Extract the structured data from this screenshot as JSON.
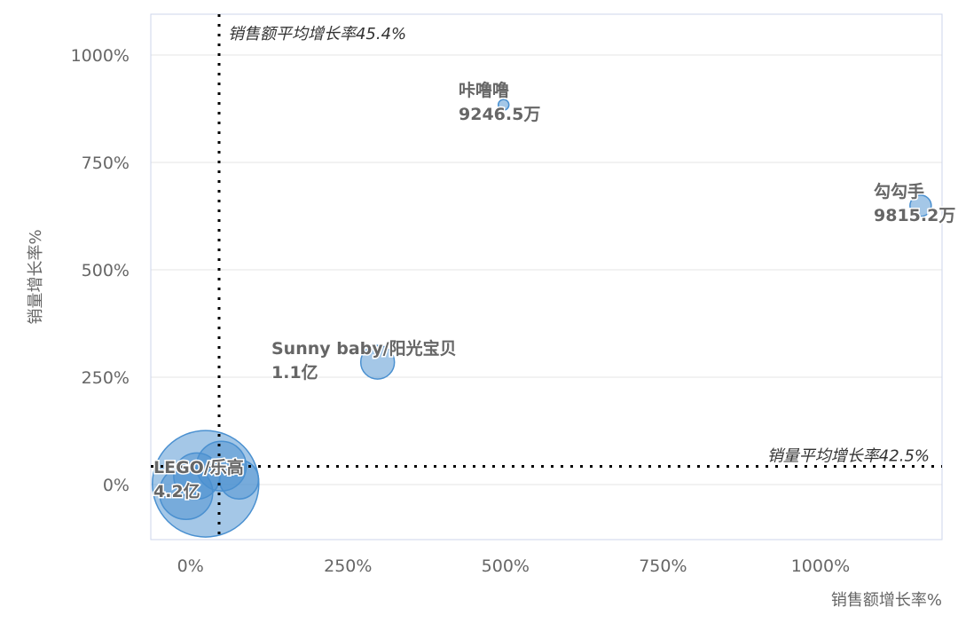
{
  "chart_data": {
    "type": "scatter",
    "subtype": "bubble",
    "xlabel": "销售额增长率%",
    "ylabel": "销量增长率%",
    "xlim": [
      -63,
      1193
    ],
    "ylim": [
      -128,
      1095
    ],
    "x_ticks": [
      "0%",
      "250%",
      "500%",
      "750%",
      "1000%"
    ],
    "x_tick_values": [
      0,
      250,
      500,
      750,
      1000
    ],
    "y_ticks": [
      "0%",
      "250%",
      "500%",
      "750%",
      "1000%"
    ],
    "y_tick_values": [
      0,
      250,
      500,
      750,
      1000
    ],
    "grid": "horizontal",
    "bubble_color": "#4a90d0",
    "reference_lines": [
      {
        "axis": "x",
        "value": 45.4,
        "label": "销售额平均增长率45.4%"
      },
      {
        "axis": "y",
        "value": 42.5,
        "label": "销量平均增长率42.5%"
      }
    ],
    "points": [
      {
        "name": "LEGO/乐高",
        "sales": "4.2亿",
        "x": 24,
        "y": 2,
        "size": 60
      },
      {
        "name": "",
        "sales": "",
        "x": -7,
        "y": -19,
        "size": 30
      },
      {
        "name": "",
        "sales": "",
        "x": 49,
        "y": 43,
        "size": 28
      },
      {
        "name": "",
        "sales": "",
        "x": 77,
        "y": 12,
        "size": 22
      },
      {
        "name": "",
        "sales": "",
        "x": 10,
        "y": 20,
        "size": 26
      },
      {
        "name": "Sunny baby/阳光宝贝",
        "sales": "1.1亿",
        "x": 297,
        "y": 285,
        "size": 19
      },
      {
        "name": "勾勾手",
        "sales": "9815.2万",
        "x": 1159,
        "y": 649,
        "size": 12
      },
      {
        "name": "咔噜噜",
        "sales": "9246.5万",
        "x": 497,
        "y": 884,
        "size": 6
      }
    ]
  }
}
